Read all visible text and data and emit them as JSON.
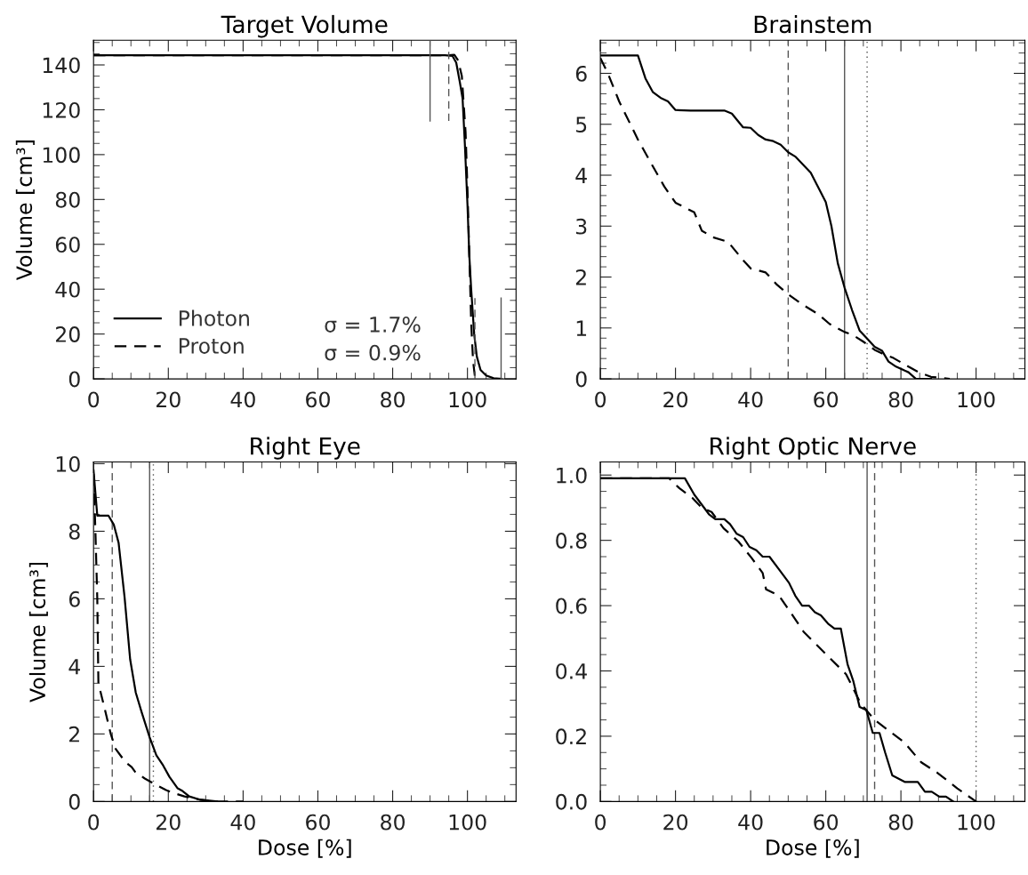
{
  "chart_data": [
    {
      "type": "line",
      "title": "Target Volume",
      "ylabel": "Volume [cm³]",
      "xlim": [
        0,
        113
      ],
      "xticks": [
        0,
        20,
        40,
        60,
        80,
        100
      ],
      "ylim": [
        0,
        151
      ],
      "yticks": [
        0,
        20,
        40,
        60,
        80,
        100,
        120,
        140
      ],
      "legend": "bottom left",
      "grid": false,
      "annotations": [
        "σ = 1.7%",
        "σ = 0.9%"
      ],
      "series": [
        {
          "name": "Photon",
          "color": "#000000",
          "line_style": "solid",
          "x": [
            0,
            94,
            96,
            97,
            98,
            98.7,
            99.3,
            100,
            100.5,
            101,
            101.8,
            102.5,
            103.5,
            105,
            107,
            109
          ],
          "values": [
            144.3,
            144.3,
            144,
            141,
            132,
            125,
            105,
            78,
            55,
            40,
            20,
            10,
            4,
            1.5,
            0.3,
            0
          ]
        },
        {
          "name": "Proton",
          "color": "#000000",
          "line_style": "dashed",
          "x": [
            0,
            95,
            96.5,
            97.5,
            98.5,
            99.5,
            100,
            100.5,
            101,
            101.5,
            102,
            102.5
          ],
          "values": [
            144.3,
            144.3,
            144.5,
            142,
            135,
            110,
            85,
            55,
            25,
            8,
            1,
            0
          ]
        },
        {
          "type": "line",
          "color": "#555555",
          "line_style": "solid",
          "x": [
            90,
            90
          ],
          "values": [
            115,
            151
          ]
        },
        {
          "type": "line",
          "color": "#555555",
          "line_style": "dashed",
          "x": [
            95,
            95
          ],
          "values": [
            115,
            151
          ]
        },
        {
          "type": "line",
          "color": "#555555",
          "line_style": "dashed",
          "x": [
            102,
            102
          ],
          "values": [
            0,
            36
          ]
        },
        {
          "type": "line",
          "color": "#555555",
          "line_style": "solid",
          "x": [
            109,
            109
          ],
          "values": [
            0,
            36
          ]
        }
      ]
    },
    {
      "type": "line",
      "title": "Brainstem",
      "xlim": [
        0,
        113
      ],
      "xticks": [
        0,
        20,
        40,
        60,
        80,
        100
      ],
      "ylim": [
        0,
        6.65
      ],
      "yticks": [
        0,
        1,
        2,
        3,
        4,
        5,
        6
      ],
      "grid": false,
      "ref_lines": [
        {
          "axis": "x",
          "value": 50,
          "color": "#555555",
          "line_style": "dashed"
        },
        {
          "axis": "x",
          "value": 65,
          "color": "#555555",
          "line_style": "solid"
        },
        {
          "axis": "x",
          "value": 71,
          "color": "#555555",
          "line_style": "dotted"
        }
      ],
      "series": [
        {
          "color": "#000000",
          "line_style": "solid",
          "x": [
            0,
            10,
            12,
            14,
            16,
            18,
            20,
            24,
            33,
            35,
            38,
            40,
            42,
            44,
            46,
            48,
            50,
            52,
            56,
            60,
            61.5,
            63.2,
            65,
            67,
            69,
            71,
            73,
            75,
            76.7,
            78.7,
            82,
            84,
            88
          ],
          "values": [
            6.35,
            6.35,
            5.9,
            5.63,
            5.52,
            5.45,
            5.28,
            5.27,
            5.27,
            5.21,
            4.94,
            4.93,
            4.79,
            4.7,
            4.67,
            4.6,
            4.45,
            4.36,
            4.05,
            3.47,
            3.0,
            2.27,
            1.79,
            1.35,
            0.95,
            0.79,
            0.63,
            0.55,
            0.34,
            0.24,
            0.13,
            0,
            0
          ]
        },
        {
          "color": "#000000",
          "line_style": "dashed",
          "x": [
            0,
            2,
            5,
            8,
            10,
            14,
            17,
            20,
            25,
            27,
            30,
            34,
            38,
            40,
            44,
            47,
            50,
            54,
            58,
            61,
            65,
            67,
            70,
            73,
            75,
            78,
            82,
            85,
            88,
            93
          ],
          "values": [
            6.3,
            6.0,
            5.45,
            5.0,
            4.7,
            4.17,
            3.78,
            3.46,
            3.27,
            2.91,
            2.78,
            2.69,
            2.33,
            2.17,
            2.09,
            1.85,
            1.66,
            1.45,
            1.27,
            1.08,
            0.92,
            0.87,
            0.73,
            0.57,
            0.5,
            0.41,
            0.24,
            0.12,
            0.04,
            0
          ]
        }
      ]
    },
    {
      "type": "line",
      "title": "Right Eye",
      "xlabel": "Dose [%]",
      "ylabel": "Volume [cm³]",
      "xlim": [
        0,
        113
      ],
      "xticks": [
        0,
        20,
        40,
        60,
        80,
        100
      ],
      "ylim": [
        0,
        10.05
      ],
      "yticks": [
        0,
        2,
        4,
        6,
        8,
        10
      ],
      "grid": false,
      "ref_lines": [
        {
          "axis": "x",
          "value": 5,
          "color": "#555555",
          "line_style": "dashed"
        },
        {
          "axis": "x",
          "value": 15,
          "color": "#555555",
          "line_style": "solid"
        },
        {
          "axis": "x",
          "value": 16,
          "color": "#555555",
          "line_style": "dotted"
        }
      ],
      "series": [
        {
          "color": "#000000",
          "line_style": "solid",
          "x": [
            0,
            1,
            4,
            5.4,
            6.7,
            8.3,
            9.8,
            11.3,
            12.9,
            15,
            16.8,
            18.6,
            20.3,
            22.5,
            23.8,
            25.6,
            28.6,
            33
          ],
          "values": [
            9.8,
            8.46,
            8.46,
            8.2,
            7.66,
            6.05,
            4.2,
            3.22,
            2.63,
            1.9,
            1.37,
            1.07,
            0.73,
            0.39,
            0.31,
            0.15,
            0.05,
            0
          ]
        },
        {
          "color": "#000000",
          "line_style": "dashed",
          "x": [
            0,
            0.5,
            1,
            1.3,
            2.8,
            4.6,
            5.9,
            8.5,
            10.2,
            11.1,
            13.7,
            16.8,
            19.4,
            21.2,
            24.3,
            28.6,
            33,
            40
          ],
          "values": [
            9.7,
            8.0,
            6.0,
            3.5,
            2.83,
            2.0,
            1.56,
            1.17,
            1.02,
            0.88,
            0.68,
            0.49,
            0.34,
            0.26,
            0.15,
            0.05,
            0,
            0
          ]
        }
      ]
    },
    {
      "type": "line",
      "title": "Right Optic Nerve",
      "xlabel": "Dose [%]",
      "xlim": [
        0,
        113
      ],
      "xticks": [
        0,
        20,
        40,
        60,
        80,
        100
      ],
      "ylim": [
        0,
        1.04
      ],
      "yticks": [
        {
          "value": 0,
          "label": "0.0"
        },
        {
          "value": 0.2,
          "label": "0.2"
        },
        {
          "value": 0.4,
          "label": "0.4"
        },
        {
          "value": 0.6,
          "label": "0.6"
        },
        {
          "value": 0.8,
          "label": "0.8"
        },
        {
          "value": 1,
          "label": "1.0"
        }
      ],
      "grid": false,
      "ref_lines": [
        {
          "axis": "x",
          "value": 71,
          "color": "#555555",
          "line_style": "solid"
        },
        {
          "axis": "x",
          "value": 73,
          "color": "#555555",
          "line_style": "dashed"
        },
        {
          "axis": "x",
          "value": 100,
          "color": "#555555",
          "line_style": "dotted"
        }
      ],
      "series": [
        {
          "color": "#000000",
          "line_style": "solid",
          "x": [
            0,
            22.5,
            25,
            28.9,
            30.6,
            33,
            34.5,
            36.3,
            38,
            39.7,
            41.5,
            43.2,
            45,
            47.6,
            50.2,
            51.9,
            53.7,
            55.5,
            57.1,
            58.7,
            60.6,
            62.3,
            64,
            65.8,
            67.3,
            69,
            70.8,
            72.5,
            74.3,
            75.8,
            77.7,
            81,
            84.5,
            86.4,
            88.2,
            90.2,
            92,
            93.9
          ],
          "values": [
            0.99,
            0.99,
            0.94,
            0.88,
            0.865,
            0.865,
            0.85,
            0.82,
            0.81,
            0.78,
            0.77,
            0.75,
            0.75,
            0.71,
            0.67,
            0.63,
            0.6,
            0.6,
            0.58,
            0.57,
            0.545,
            0.53,
            0.53,
            0.42,
            0.37,
            0.29,
            0.28,
            0.21,
            0.21,
            0.15,
            0.08,
            0.06,
            0.06,
            0.03,
            0.03,
            0.015,
            0.015,
            0
          ]
        },
        {
          "color": "#000000",
          "line_style": "dashed",
          "x": [
            0,
            18.3,
            21,
            24.5,
            27,
            29.6,
            32.8,
            36.7,
            40.2,
            43.2,
            44.1,
            47.6,
            50.6,
            54.1,
            59.3,
            65.4,
            69.3,
            73,
            81,
            85.4,
            89.7,
            95,
            100
          ],
          "values": [
            0.99,
            0.99,
            0.96,
            0.93,
            0.9,
            0.887,
            0.837,
            0.797,
            0.747,
            0.7,
            0.65,
            0.63,
            0.58,
            0.52,
            0.46,
            0.39,
            0.3,
            0.25,
            0.18,
            0.12,
            0.088,
            0.04,
            0
          ]
        }
      ]
    }
  ]
}
